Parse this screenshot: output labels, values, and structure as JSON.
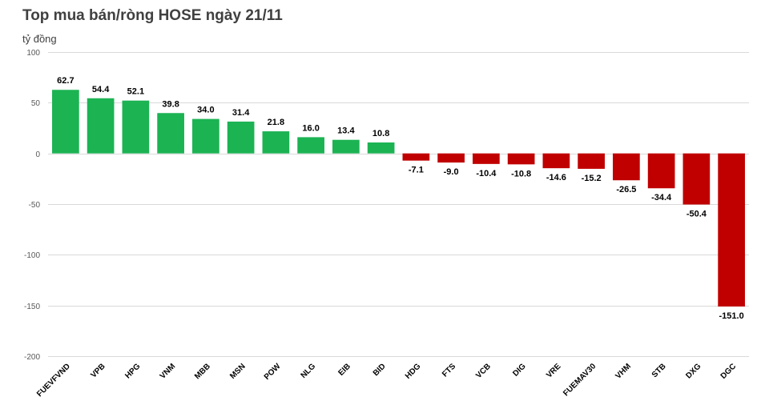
{
  "chart_data": {
    "type": "bar",
    "title": "Top mua bán/ròng HOSE ngày 21/11",
    "ylabel": "tỷ đồng",
    "xlabel": "",
    "ylim": [
      -200,
      100
    ],
    "yticks": [
      100,
      50,
      0,
      -50,
      -100,
      -150,
      -200
    ],
    "grid": true,
    "legend": "none",
    "colors": {
      "positive": "#1cb353",
      "negative": "#c00000"
    },
    "categories": [
      "FUEVFVND",
      "VPB",
      "HPG",
      "VNM",
      "MBB",
      "MSN",
      "POW",
      "NLG",
      "EIB",
      "BID",
      "HDG",
      "FTS",
      "VCB",
      "DIG",
      "VRE",
      "FUEMAV30",
      "VHM",
      "STB",
      "DXG",
      "DGC"
    ],
    "values": [
      62.7,
      54.4,
      52.1,
      39.8,
      34.0,
      31.4,
      21.8,
      16.0,
      13.4,
      10.8,
      -7.1,
      -9.0,
      -10.4,
      -10.8,
      -14.6,
      -15.2,
      -26.5,
      -34.4,
      -50.4,
      -151.0
    ],
    "labels": [
      "62.7",
      "54.4",
      "52.1",
      "39.8",
      "34.0",
      "31.4",
      "21.8",
      "16.0",
      "13.4",
      "10.8",
      "-7.1",
      "-9.0",
      "-10.4",
      "-10.8",
      "-14.6",
      "-15.2",
      "-26.5",
      "-34.4",
      "-50.4",
      "-151.0"
    ]
  }
}
